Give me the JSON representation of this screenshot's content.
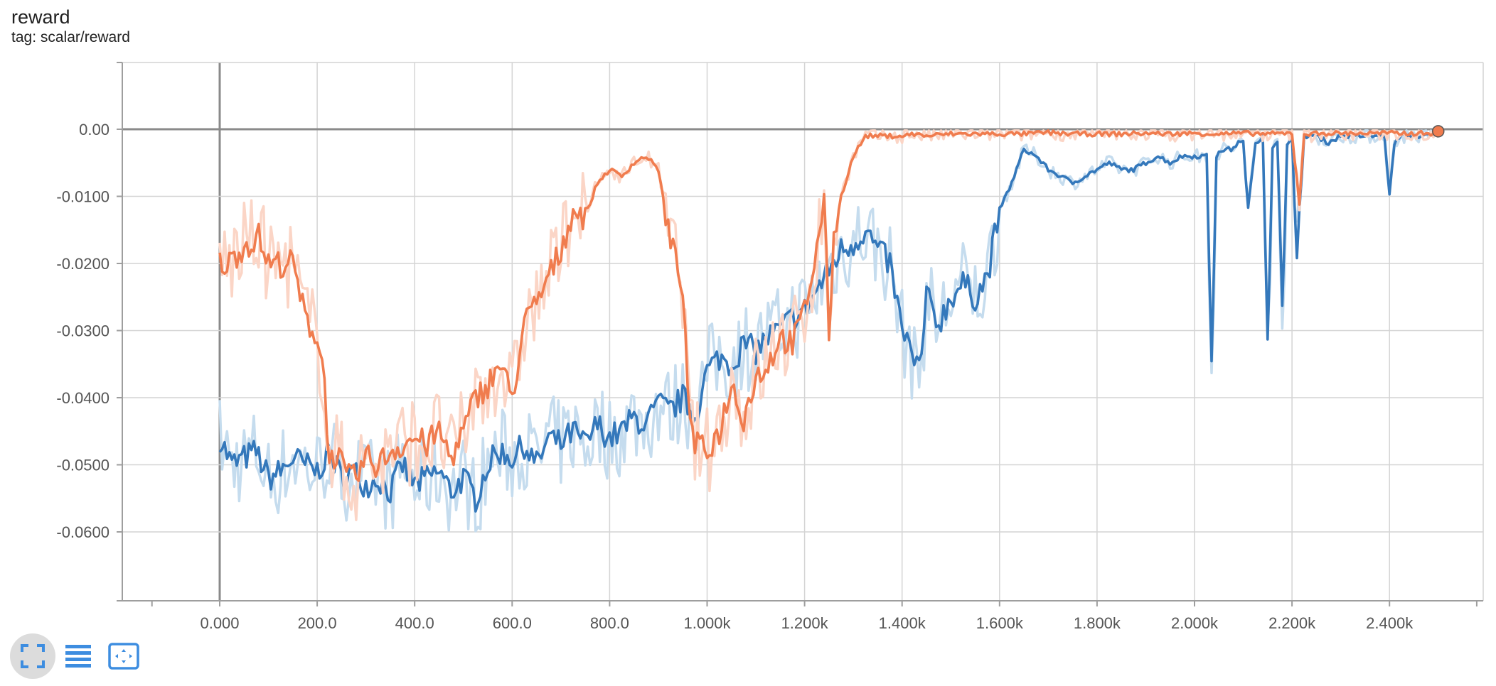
{
  "header": {
    "title": "reward",
    "subtitle": "tag: scalar/reward"
  },
  "toolbar": {
    "buttons": [
      {
        "icon": "fullscreen-icon"
      },
      {
        "icon": "list-icon"
      },
      {
        "icon": "fit-domain-icon"
      }
    ]
  },
  "colors": {
    "blue": "#3478bb",
    "blue_raw": "#c5dcee",
    "orange": "#f07c4e",
    "orange_raw": "#fbd5c6",
    "grid": "#d4d4d4",
    "axis": "#9e9e9e"
  },
  "chart_data": {
    "type": "line",
    "title": "reward",
    "subtitle": "tag: scalar/reward",
    "xlabel": "",
    "ylabel": "",
    "xlim": [
      -200,
      2600
    ],
    "ylim": [
      -0.07,
      0.01
    ],
    "x_ticks": [
      0,
      200,
      400,
      600,
      800,
      1000,
      1200,
      1400,
      1600,
      1800,
      2000,
      2200,
      2400
    ],
    "x_tick_labels": [
      "0.000",
      "200.0",
      "400.0",
      "600.0",
      "800.0",
      "1.000k",
      "1.200k",
      "1.400k",
      "1.600k",
      "1.800k",
      "2.000k",
      "2.200k",
      "2.400k"
    ],
    "y_ticks": [
      0,
      -0.01,
      -0.02,
      -0.03,
      -0.04,
      -0.05,
      -0.06
    ],
    "y_tick_labels": [
      "0.00",
      "-0.0100",
      "-0.0200",
      "-0.0300",
      "-0.0400",
      "-0.0500",
      "-0.0600"
    ],
    "grid": true,
    "series": [
      {
        "color": "#3478bb",
        "raw_color": "#c5dcee",
        "x": [
          0,
          25,
          50,
          75,
          100,
          125,
          150,
          175,
          200,
          225,
          250,
          275,
          300,
          325,
          350,
          375,
          400,
          425,
          450,
          475,
          500,
          525,
          550,
          575,
          600,
          625,
          650,
          675,
          700,
          725,
          750,
          775,
          800,
          825,
          850,
          875,
          900,
          925,
          950,
          975,
          1000,
          1025,
          1050,
          1075,
          1100,
          1125,
          1150,
          1175,
          1200,
          1225,
          1250,
          1275,
          1300,
          1325,
          1350,
          1375,
          1400,
          1415,
          1425,
          1440,
          1450,
          1475,
          1500,
          1525,
          1550,
          1575,
          1600,
          1625,
          1650,
          1675,
          1700,
          1725,
          1750,
          1775,
          1800,
          1825,
          1850,
          1875,
          1900,
          1925,
          1950,
          1975,
          2000,
          2025,
          2035,
          2045,
          2060,
          2075,
          2090,
          2100,
          2110,
          2125,
          2140,
          2150,
          2160,
          2170,
          2180,
          2190,
          2200,
          2210,
          2225,
          2250,
          2275,
          2300,
          2325,
          2350,
          2375,
          2390,
          2400,
          2410,
          2425,
          2450,
          2475,
          2500
        ],
        "y": [
          -0.046,
          -0.05,
          -0.049,
          -0.048,
          -0.052,
          -0.051,
          -0.049,
          -0.05,
          -0.051,
          -0.048,
          -0.052,
          -0.051,
          -0.053,
          -0.052,
          -0.054,
          -0.05,
          -0.053,
          -0.052,
          -0.051,
          -0.054,
          -0.052,
          -0.055,
          -0.05,
          -0.048,
          -0.049,
          -0.047,
          -0.05,
          -0.046,
          -0.047,
          -0.045,
          -0.047,
          -0.044,
          -0.046,
          -0.045,
          -0.043,
          -0.044,
          -0.041,
          -0.042,
          -0.04,
          -0.043,
          -0.036,
          -0.034,
          -0.035,
          -0.032,
          -0.033,
          -0.031,
          -0.03,
          -0.028,
          -0.027,
          -0.024,
          -0.021,
          -0.018,
          -0.017,
          -0.015,
          -0.018,
          -0.02,
          -0.03,
          -0.032,
          -0.036,
          -0.034,
          -0.025,
          -0.029,
          -0.025,
          -0.023,
          -0.025,
          -0.022,
          -0.012,
          -0.008,
          -0.003,
          -0.004,
          -0.006,
          -0.007,
          -0.008,
          -0.007,
          -0.006,
          -0.005,
          -0.006,
          -0.006,
          -0.005,
          -0.004,
          -0.005,
          -0.004,
          -0.004,
          -0.004,
          -0.034,
          -0.004,
          -0.003,
          -0.003,
          -0.002,
          -0.002,
          -0.012,
          -0.002,
          -0.001,
          -0.03,
          -0.003,
          -0.002,
          -0.028,
          -0.002,
          -0.001,
          -0.02,
          -0.001,
          -0.001,
          -0.002,
          -0.001,
          -0.001,
          -0.001,
          -0.001,
          -0.001,
          -0.01,
          -0.002,
          -0.001,
          -0.001,
          -0.001,
          -0.0005
        ]
      },
      {
        "color": "#f07c4e",
        "raw_color": "#fbd5c6",
        "x": [
          0,
          20,
          40,
          60,
          80,
          100,
          125,
          150,
          175,
          200,
          215,
          225,
          240,
          260,
          280,
          300,
          325,
          350,
          375,
          400,
          425,
          450,
          475,
          500,
          525,
          550,
          575,
          600,
          625,
          650,
          675,
          700,
          725,
          750,
          775,
          800,
          825,
          850,
          875,
          900,
          925,
          950,
          960,
          975,
          1000,
          1025,
          1050,
          1075,
          1100,
          1125,
          1150,
          1175,
          1200,
          1225,
          1240,
          1250,
          1260,
          1275,
          1300,
          1325,
          1350,
          1375,
          1400,
          1425,
          1450,
          1500,
          1550,
          1600,
          1650,
          1700,
          1750,
          1800,
          1850,
          1900,
          1950,
          2000,
          2050,
          2100,
          2150,
          2200,
          2215,
          2225,
          2240,
          2250,
          2300,
          2350,
          2400,
          2450,
          2500
        ],
        "y": [
          -0.02,
          -0.02,
          -0.018,
          -0.017,
          -0.016,
          -0.02,
          -0.02,
          -0.02,
          -0.028,
          -0.031,
          -0.037,
          -0.05,
          -0.048,
          -0.052,
          -0.052,
          -0.049,
          -0.05,
          -0.048,
          -0.047,
          -0.046,
          -0.047,
          -0.045,
          -0.049,
          -0.045,
          -0.04,
          -0.038,
          -0.035,
          -0.04,
          -0.029,
          -0.026,
          -0.022,
          -0.018,
          -0.012,
          -0.013,
          -0.008,
          -0.006,
          -0.007,
          -0.005,
          -0.004,
          -0.006,
          -0.017,
          -0.023,
          -0.04,
          -0.047,
          -0.048,
          -0.045,
          -0.038,
          -0.043,
          -0.037,
          -0.035,
          -0.031,
          -0.032,
          -0.027,
          -0.018,
          -0.01,
          -0.03,
          -0.016,
          -0.01,
          -0.004,
          -0.001,
          -0.001,
          -0.001,
          -0.001,
          -0.0007,
          -0.001,
          -0.0007,
          -0.0007,
          -0.0007,
          -0.0007,
          -0.0005,
          -0.0007,
          -0.0007,
          -0.0007,
          -0.0006,
          -0.0007,
          -0.0006,
          -0.0007,
          -0.0006,
          -0.0007,
          -0.0006,
          -0.011,
          -0.0006,
          -0.0008,
          -0.0006,
          -0.0006,
          -0.0006,
          -0.0006,
          -0.0006,
          -0.0006
        ]
      }
    ],
    "last_point_marker": {
      "x": 2500,
      "y": -0.0003
    }
  }
}
